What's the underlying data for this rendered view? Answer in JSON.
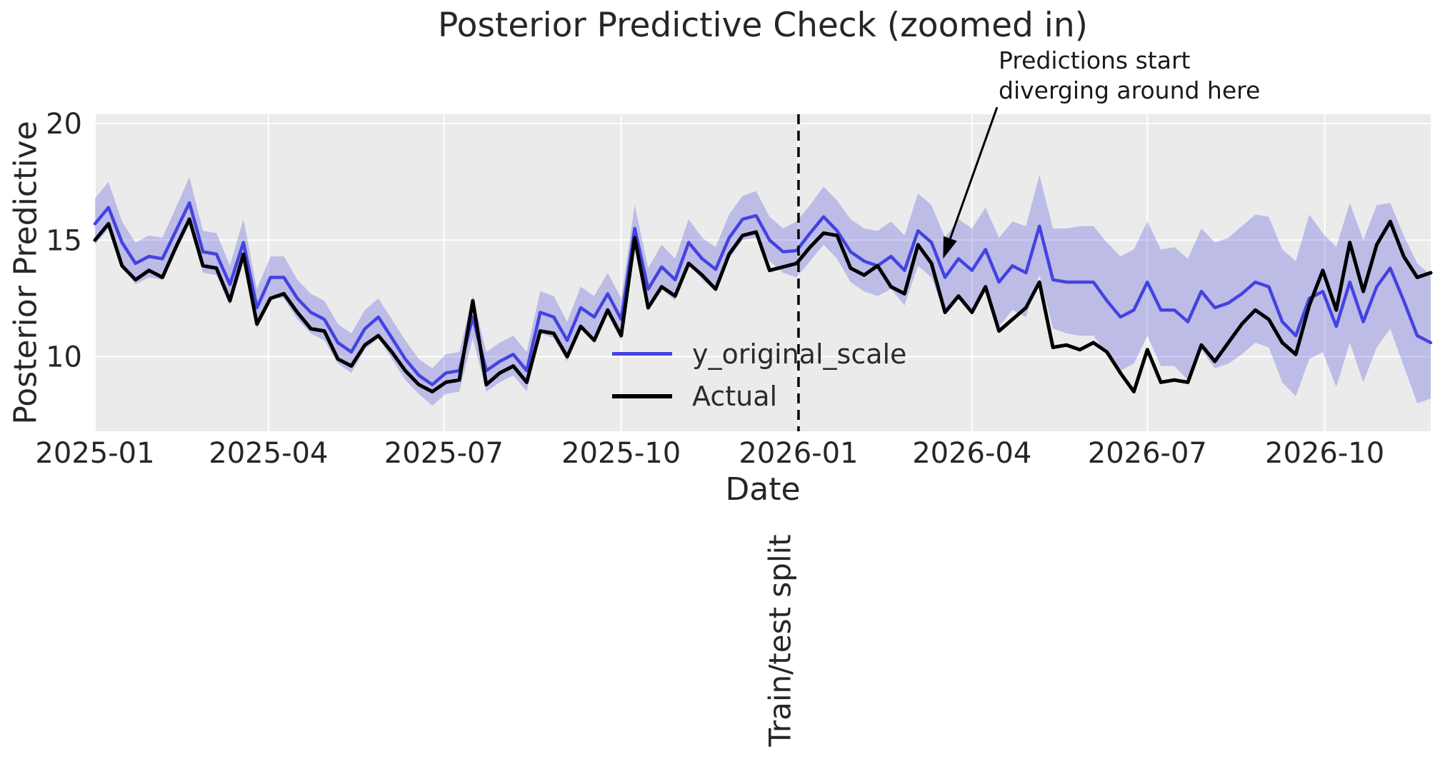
{
  "chart_data": {
    "type": "line",
    "title": "Posterior Predictive Check (zoomed in)",
    "xlabel": "Date",
    "ylabel": "Posterior Predictive",
    "x_start": "2025-01-01",
    "x_step_days": 7,
    "ylim": [
      6.8,
      20.4
    ],
    "grid": true,
    "plot_background": "#ebebeb",
    "grid_color": "#ffffff",
    "yticks": [
      {
        "value": 10,
        "label": "10"
      },
      {
        "value": 15,
        "label": "15"
      },
      {
        "value": 20,
        "label": "20"
      }
    ],
    "xticks": [
      {
        "date": "2025-01-01",
        "label": "2025-01"
      },
      {
        "date": "2025-04-01",
        "label": "2025-04"
      },
      {
        "date": "2025-07-01",
        "label": "2025-07"
      },
      {
        "date": "2025-10-01",
        "label": "2025-10"
      },
      {
        "date": "2026-01-01",
        "label": "2026-01"
      },
      {
        "date": "2026-04-01",
        "label": "2026-04"
      },
      {
        "date": "2026-07-01",
        "label": "2026-07"
      },
      {
        "date": "2026-10-01",
        "label": "2026-10"
      }
    ],
    "series": [
      {
        "name": "y_original_scale",
        "color": "#4343e0",
        "width": 4.5,
        "values": [
          15.7,
          16.4,
          14.9,
          14.0,
          14.3,
          14.2,
          15.4,
          16.6,
          14.5,
          14.4,
          13.1,
          14.9,
          12.1,
          13.4,
          13.4,
          12.5,
          11.9,
          11.6,
          10.6,
          10.2,
          11.2,
          11.7,
          10.8,
          9.9,
          9.2,
          8.8,
          9.3,
          9.4,
          11.7,
          9.4,
          9.8,
          10.1,
          9.4,
          11.9,
          11.7,
          10.7,
          12.1,
          11.7,
          12.7,
          11.6,
          15.5,
          12.9,
          13.85,
          13.3,
          14.9,
          14.2,
          13.75,
          15.1,
          15.9,
          16.05,
          15.0,
          14.5,
          14.55,
          15.3,
          16.0,
          15.4,
          14.5,
          14.1,
          13.9,
          14.3,
          13.7,
          15.4,
          14.9,
          13.4,
          14.2,
          13.7,
          14.6,
          13.2,
          13.9,
          13.6,
          15.6,
          13.3,
          13.2,
          13.2,
          13.2,
          12.4,
          11.7,
          12.0,
          13.2,
          12.0,
          12.0,
          11.5,
          12.8,
          12.1,
          12.3,
          12.7,
          13.2,
          13.0,
          11.5,
          10.9,
          12.5,
          12.8,
          11.3,
          13.2,
          11.5,
          13.0,
          13.8,
          12.4,
          10.9,
          10.6
        ]
      },
      {
        "name": "Actual",
        "color": "#000000",
        "width": 5,
        "values": [
          15.0,
          15.7,
          13.9,
          13.3,
          13.7,
          13.4,
          14.7,
          15.9,
          13.9,
          13.8,
          12.4,
          14.4,
          11.4,
          12.5,
          12.7,
          11.9,
          11.2,
          11.1,
          9.9,
          9.6,
          10.5,
          10.9,
          10.2,
          9.4,
          8.8,
          8.5,
          8.9,
          9.0,
          12.4,
          8.8,
          9.3,
          9.6,
          8.9,
          11.1,
          11.0,
          10.0,
          11.3,
          10.7,
          12.0,
          10.9,
          15.1,
          12.1,
          13.0,
          12.6,
          14.0,
          13.5,
          12.9,
          14.4,
          15.2,
          15.35,
          13.7,
          13.85,
          14.0,
          14.7,
          15.3,
          15.2,
          13.8,
          13.5,
          13.9,
          13.0,
          12.7,
          14.8,
          14.0,
          11.9,
          12.6,
          11.9,
          13.0,
          11.1,
          11.6,
          12.1,
          13.2,
          10.4,
          10.5,
          10.3,
          10.6,
          10.2,
          9.3,
          8.5,
          10.3,
          8.9,
          9.0,
          8.9,
          10.5,
          9.8,
          10.6,
          11.4,
          12.0,
          11.6,
          10.6,
          10.1,
          12.2,
          13.7,
          12.0,
          14.9,
          12.8,
          14.8,
          15.8,
          14.3,
          13.4,
          13.6
        ]
      }
    ],
    "band": {
      "name": "posterior-uncertainty-band",
      "color": "rgba(67,67,224,0.28)",
      "upper": [
        16.8,
        17.5,
        15.8,
        14.9,
        15.2,
        15.1,
        16.4,
        17.7,
        15.4,
        15.3,
        13.9,
        15.9,
        12.9,
        14.3,
        14.3,
        13.3,
        12.7,
        12.4,
        11.4,
        11.0,
        12.0,
        12.5,
        11.6,
        10.7,
        9.9,
        9.5,
        10.1,
        10.2,
        12.6,
        10.2,
        10.6,
        10.9,
        10.2,
        12.8,
        12.6,
        11.5,
        13.0,
        12.6,
        13.6,
        12.5,
        16.5,
        13.8,
        14.8,
        14.2,
        15.9,
        15.1,
        14.7,
        16.1,
        16.9,
        17.1,
        16.0,
        15.5,
        15.8,
        16.5,
        17.3,
        16.7,
        15.9,
        15.5,
        15.4,
        15.8,
        15.2,
        17.0,
        16.5,
        15.1,
        15.9,
        15.5,
        16.4,
        15.1,
        15.8,
        15.6,
        17.8,
        15.5,
        15.5,
        15.6,
        15.6,
        14.9,
        14.3,
        14.6,
        15.8,
        14.6,
        14.7,
        14.2,
        15.5,
        14.9,
        15.1,
        15.6,
        16.1,
        16.0,
        14.6,
        14.1,
        16.1,
        15.3,
        14.7,
        16.6,
        15.0,
        16.5,
        16.6,
        15.2,
        14.0,
        13.5
      ],
      "lower": [
        14.8,
        15.5,
        14.0,
        13.1,
        13.4,
        13.3,
        14.5,
        15.7,
        13.6,
        13.5,
        12.2,
        14.0,
        11.2,
        12.5,
        12.5,
        11.6,
        11.0,
        10.7,
        9.7,
        9.3,
        10.3,
        10.8,
        9.9,
        9.0,
        8.4,
        7.9,
        8.4,
        8.5,
        10.8,
        8.5,
        8.9,
        9.2,
        8.5,
        11.0,
        10.8,
        9.8,
        11.2,
        10.8,
        11.8,
        10.7,
        14.6,
        12.0,
        12.9,
        12.4,
        14.0,
        13.3,
        12.8,
        14.2,
        15.0,
        15.1,
        14.1,
        13.6,
        13.4,
        14.1,
        14.8,
        14.2,
        13.2,
        12.8,
        12.6,
        12.9,
        12.2,
        13.9,
        13.4,
        11.8,
        12.6,
        12.0,
        12.8,
        11.3,
        12.0,
        11.7,
        13.5,
        11.2,
        11.0,
        10.9,
        10.9,
        10.1,
        9.4,
        9.7,
        10.9,
        9.6,
        9.6,
        9.0,
        10.3,
        9.5,
        9.7,
        10.1,
        10.6,
        10.4,
        8.9,
        8.3,
        9.9,
        10.2,
        8.7,
        10.6,
        8.9,
        10.4,
        11.2,
        9.6,
        8.0,
        8.2
      ]
    },
    "split_line": {
      "date": "2026-01-01",
      "label": "Train/test split",
      "style": "dashed",
      "color": "#000000"
    },
    "annotation": {
      "lines": [
        "Predictions start",
        "diverging around here"
      ],
      "arrow_tip": {
        "date": "2026-03-17",
        "value": 14.2
      },
      "arrow_start": {
        "date": "2026-04-14",
        "value": 20.7
      },
      "color": "#1a1a1a"
    },
    "legend_position": "center"
  }
}
